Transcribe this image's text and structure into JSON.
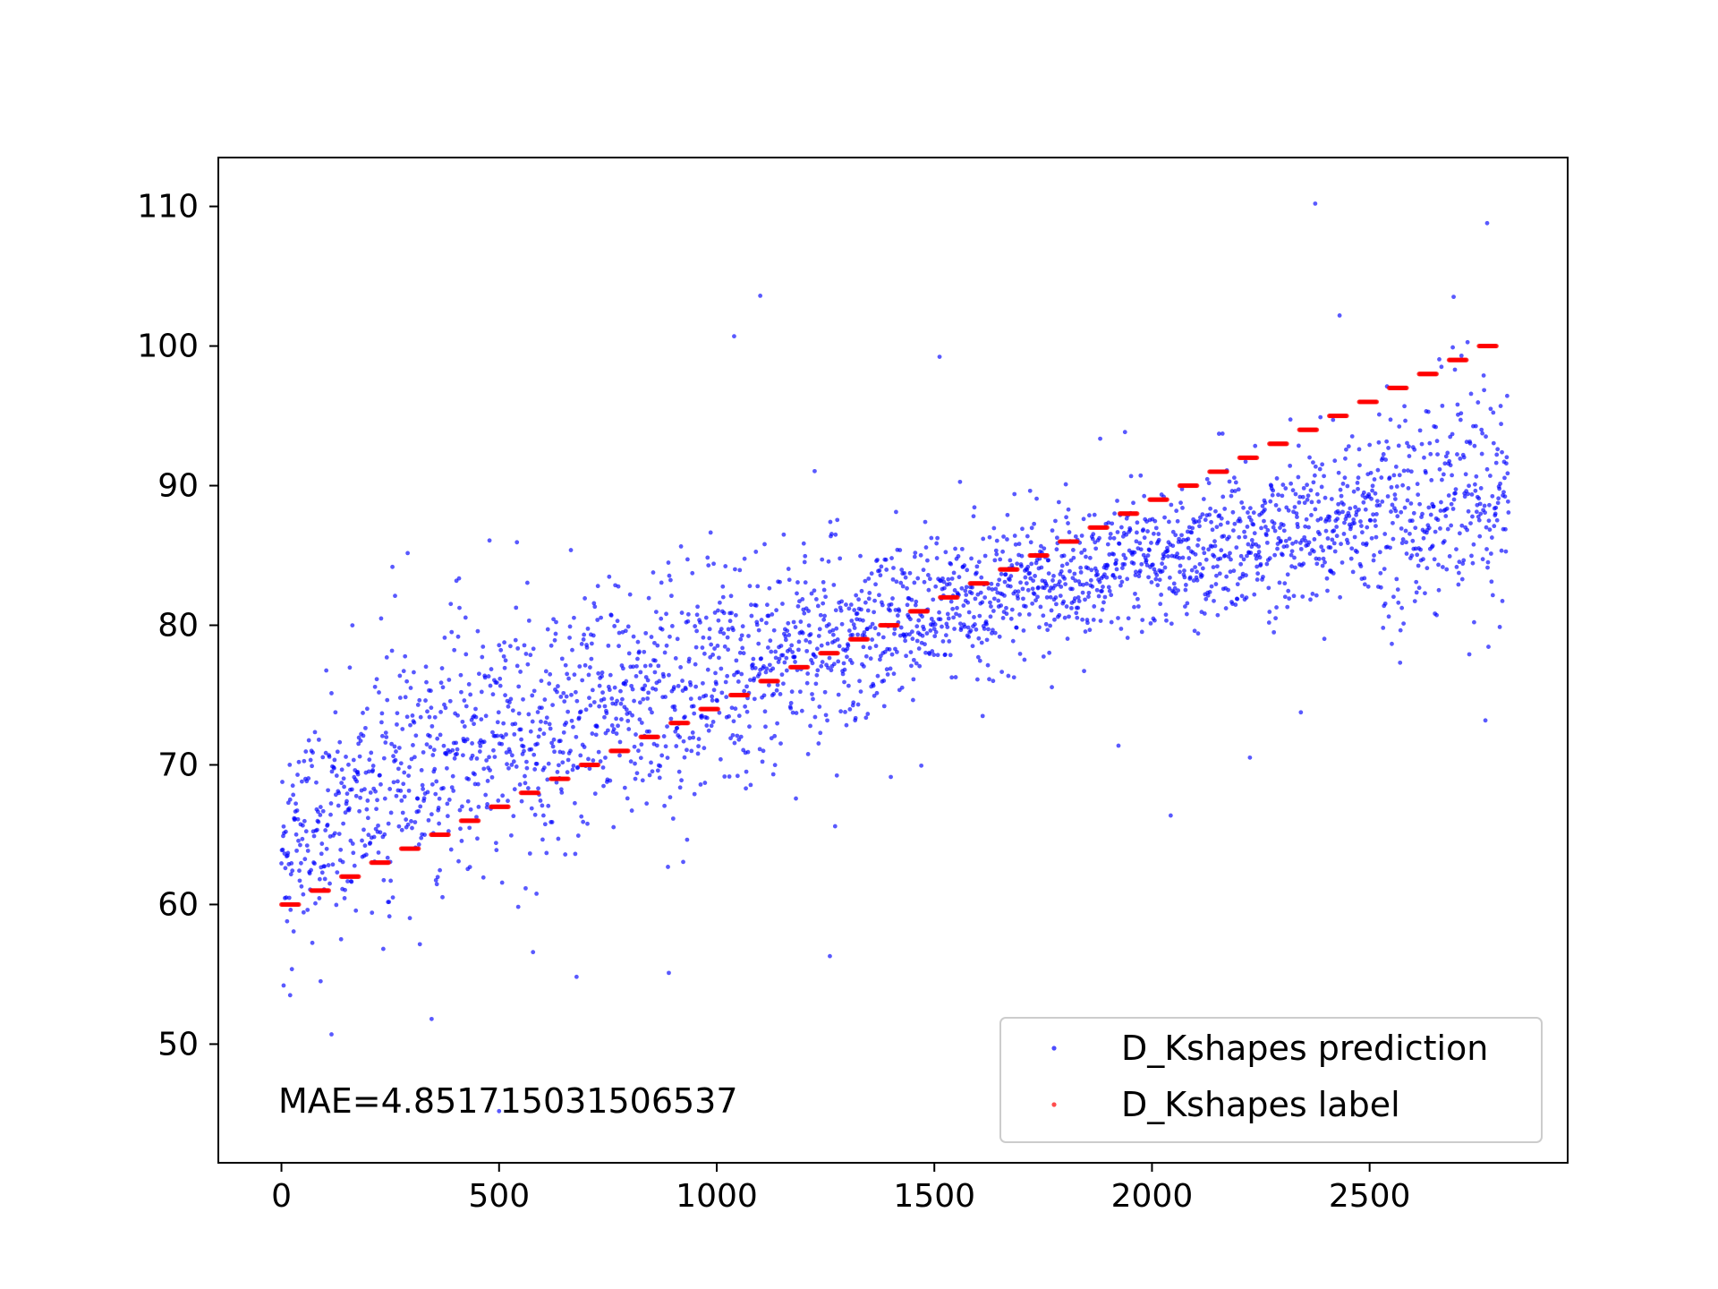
{
  "chart_data": {
    "type": "scatter",
    "title": "",
    "xlabel": "",
    "ylabel": "",
    "xlim": [
      -145,
      2955
    ],
    "ylim": [
      41.5,
      113.5
    ],
    "x_ticks": [
      0,
      500,
      1000,
      1500,
      2000,
      2500
    ],
    "y_ticks": [
      50,
      60,
      70,
      80,
      90,
      100,
      110
    ],
    "grid": false,
    "legend_position": "lower right",
    "annotation": "MAE=4.851715031506537",
    "n_points": 2820,
    "label_levels": {
      "start": 60,
      "end": 100,
      "step": 1,
      "x_start": 0,
      "x_end": 2820
    },
    "series": [
      {
        "name": "D_Kshapes prediction",
        "color": "#0000ff",
        "kind": "prediction",
        "trend_y": [
          [
            0,
            64
          ],
          [
            200,
            68
          ],
          [
            400,
            70.5
          ],
          [
            700,
            73.5
          ],
          [
            1000,
            76.5
          ],
          [
            1300,
            79.5
          ],
          [
            1600,
            82
          ],
          [
            1900,
            84
          ],
          [
            2200,
            86
          ],
          [
            2500,
            87.8
          ],
          [
            2820,
            89
          ]
        ],
        "outliers": [
          [
            5,
            54.2
          ],
          [
            20,
            53.5
          ],
          [
            115,
            50.7
          ],
          [
            345,
            51.8
          ],
          [
            1040,
            100.7
          ],
          [
            1100,
            103.6
          ],
          [
            1260,
            56.3
          ],
          [
            2375,
            110.2
          ],
          [
            2770,
            108.8
          ],
          [
            890,
            55.1
          ],
          [
            90,
            54.5
          ],
          [
            500,
            45.2
          ]
        ]
      },
      {
        "name": "D_Kshapes label",
        "color": "#ff0000",
        "kind": "label"
      }
    ]
  }
}
